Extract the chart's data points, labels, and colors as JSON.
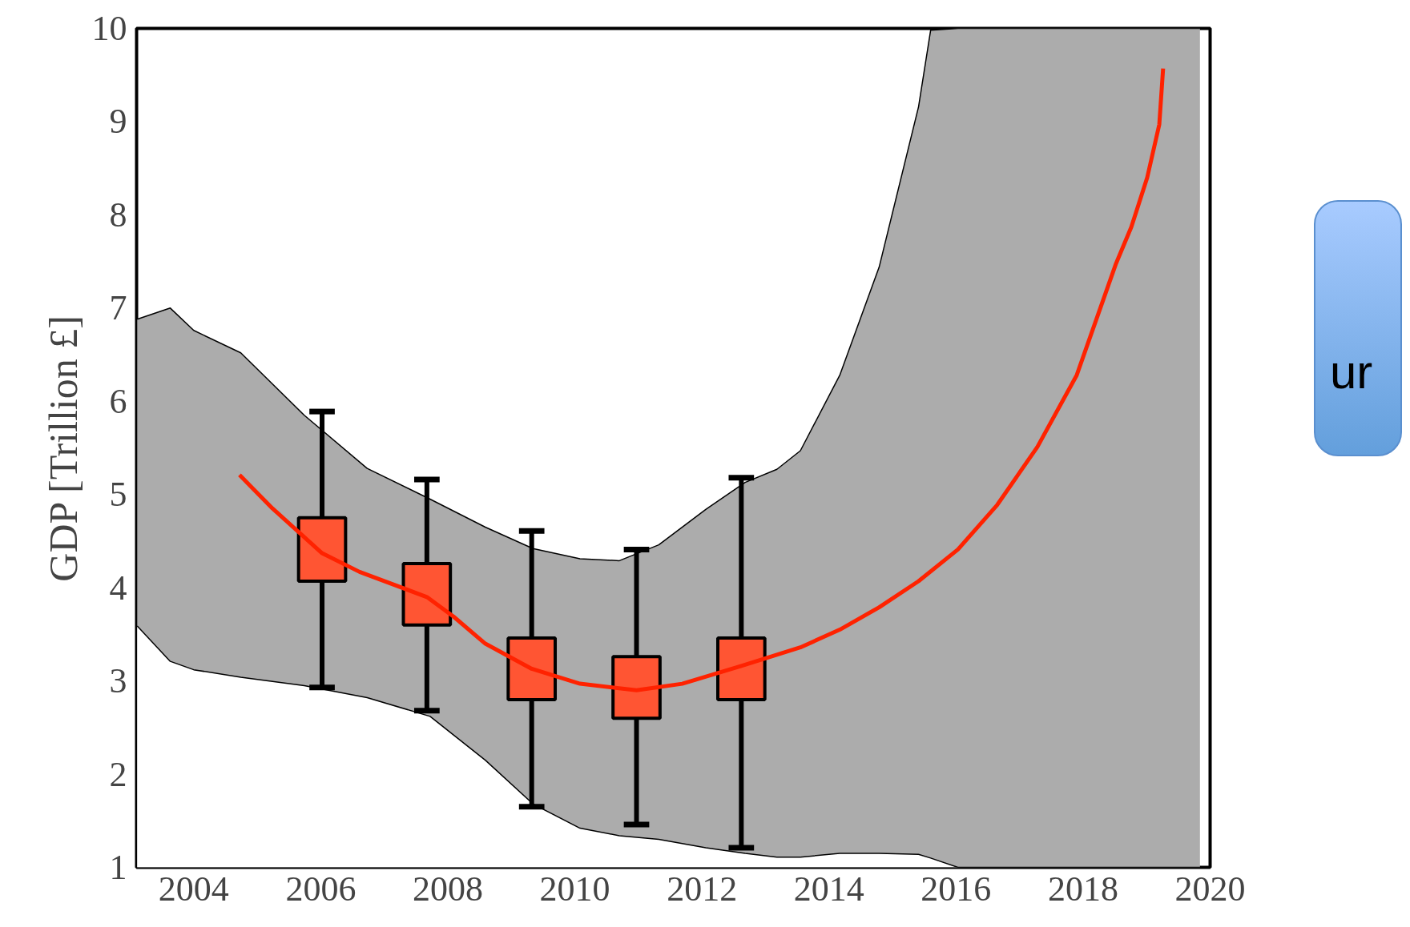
{
  "chart_data": {
    "type": "line",
    "ylabel": "GDP [Trillion £]",
    "xlim": [
      2003.1,
      2020
    ],
    "ylim": [
      1,
      10
    ],
    "xticks": [
      2004,
      2006,
      2008,
      2010,
      2012,
      2014,
      2016,
      2018,
      2020
    ],
    "yticks": [
      1,
      2,
      3,
      4,
      5,
      6,
      7,
      8,
      9,
      10
    ],
    "grid": false,
    "annotations": [
      "ur"
    ],
    "series": [
      {
        "type": "area",
        "color": "#acacac",
        "x": [
          2003.11,
          2003.63,
          2004.0,
          2004.74,
          2005.74,
          2006.73,
          2007.72,
          2008.59,
          2009.34,
          2010.08,
          2010.7,
          2011.32,
          2012.06,
          2012.68,
          2013.18,
          2013.55,
          2014.17,
          2014.79,
          2015.41,
          2015.6,
          2016.03,
          2017.28,
          2018.52,
          2019.84
        ],
        "values": [
          6.88,
          7.0,
          6.76,
          6.52,
          5.85,
          5.28,
          4.95,
          4.65,
          4.42,
          4.31,
          4.29,
          4.46,
          4.84,
          5.13,
          5.27,
          5.47,
          6.28,
          7.44,
          9.16,
          9.98,
          10,
          10,
          10,
          10
        ]
      },
      {
        "type": "area",
        "color": "#ffffff",
        "x": [
          2003.11,
          2003.63,
          2004.0,
          2004.74,
          2005.74,
          2006.73,
          2007.72,
          2008.59,
          2009.34,
          2010.08,
          2010.7,
          2011.32,
          2012.06,
          2012.68,
          2013.18,
          2013.55,
          2014.17,
          2014.79,
          2015.41,
          2015.6,
          2016.03,
          2017.28,
          2018.52,
          2019.84
        ],
        "values": [
          3.59,
          3.21,
          3.12,
          3.04,
          2.95,
          2.82,
          2.62,
          2.15,
          1.68,
          1.42,
          1.34,
          1.3,
          1.21,
          1.15,
          1.11,
          1.11,
          1.15,
          1.15,
          1.14,
          1.1,
          1.0,
          1.0,
          1.0,
          1.0
        ]
      },
      {
        "color": "#ff2200",
        "x": [
          2004.72,
          2005.24,
          2006.02,
          2006.61,
          2007.67,
          2008.09,
          2008.59,
          2009.32,
          2010.08,
          2010.97,
          2011.69,
          2012.62,
          2013.55,
          2014.17,
          2014.79,
          2015.41,
          2016.03,
          2016.65,
          2017.28,
          2017.9,
          2018.52,
          2018.76,
          2019.01,
          2019.2,
          2019.26
        ],
        "values": [
          5.21,
          4.85,
          4.37,
          4.17,
          3.9,
          3.69,
          3.4,
          3.13,
          2.97,
          2.9,
          2.97,
          3.16,
          3.36,
          3.55,
          3.79,
          4.07,
          4.41,
          4.89,
          5.51,
          6.28,
          7.48,
          7.87,
          8.4,
          8.97,
          9.57
        ]
      },
      {
        "type": "box",
        "color": "#ff5533",
        "x": [
          2006.02,
          2007.67,
          2009.32,
          2010.97,
          2012.62
        ],
        "boxes": [
          {
            "low": 2.93,
            "q1": 4.07,
            "q3": 4.75,
            "high": 5.89
          },
          {
            "low": 2.68,
            "q1": 3.6,
            "q3": 4.26,
            "high": 5.16
          },
          {
            "low": 1.65,
            "q1": 2.8,
            "q3": 3.46,
            "high": 4.61
          },
          {
            "low": 1.46,
            "q1": 2.6,
            "q3": 3.26,
            "high": 4.41
          },
          {
            "low": 1.21,
            "q1": 2.8,
            "q3": 3.46,
            "high": 5.18
          }
        ]
      }
    ]
  }
}
